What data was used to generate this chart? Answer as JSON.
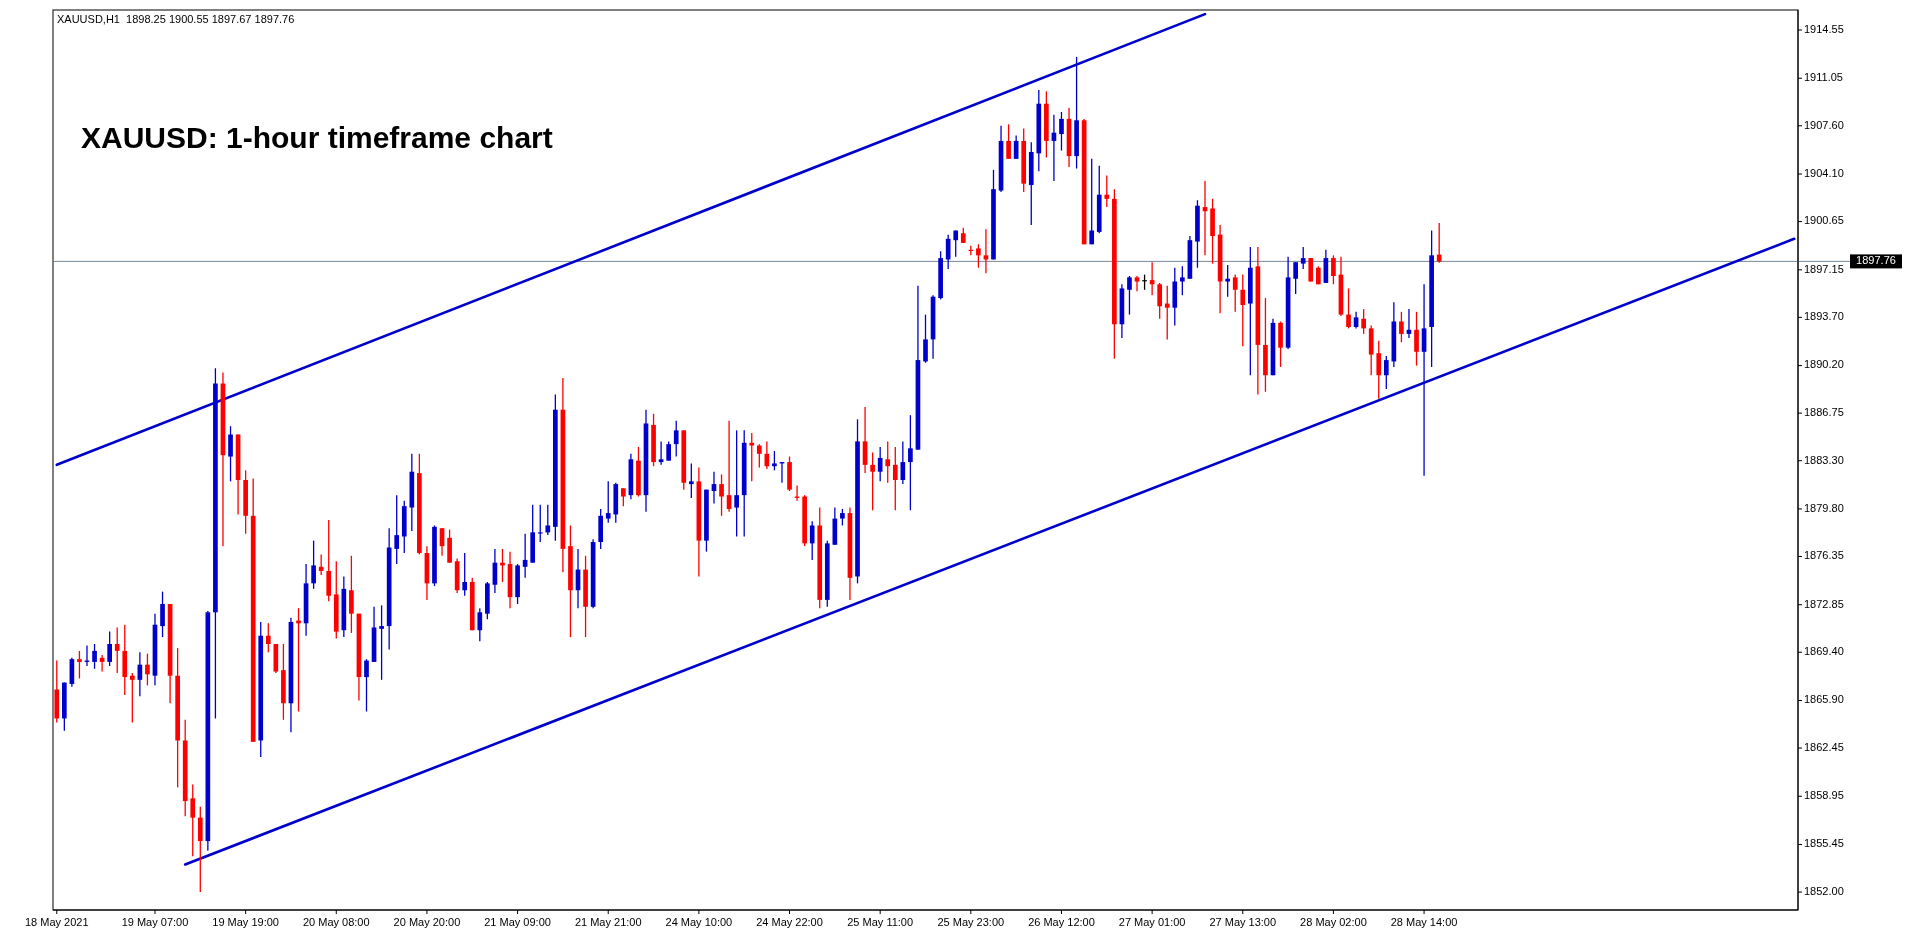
{
  "chart_data": {
    "type": "candlestick",
    "title": "XAUUSD: 1-hour timeframe chart",
    "annotations": [
      "XAUUSD,H1  1898.25 1900.55 1897.67 1897.76"
    ],
    "categories": [
      "18 May 2021",
      null,
      null,
      null,
      null,
      null,
      null,
      null,
      null,
      null,
      null,
      null,
      null,
      "19 May 07:00",
      null,
      null,
      null,
      null,
      null,
      null,
      null,
      null,
      null,
      null,
      null,
      "19 May 19:00",
      null,
      null,
      null,
      null,
      null,
      null,
      null,
      null,
      null,
      null,
      null,
      "20 May 08:00",
      null,
      null,
      null,
      null,
      null,
      null,
      null,
      null,
      null,
      null,
      null,
      "20 May 20:00",
      null,
      null,
      null,
      null,
      null,
      null,
      null,
      null,
      null,
      null,
      null,
      "21 May 09:00",
      null,
      null,
      null,
      null,
      null,
      null,
      null,
      null,
      null,
      null,
      null,
      "21 May 21:00",
      null,
      null,
      null,
      null,
      null,
      null,
      null,
      null,
      null,
      null,
      null,
      "24 May 10:00",
      null,
      null,
      null,
      null,
      null,
      null,
      null,
      null,
      null,
      null,
      null,
      "24 May 22:00",
      null,
      null,
      null,
      null,
      null,
      null,
      null,
      null,
      null,
      null,
      null,
      "25 May 11:00",
      null,
      null,
      null,
      null,
      null,
      null,
      null,
      null,
      null,
      null,
      null,
      "25 May 23:00",
      null,
      null,
      null,
      null,
      null,
      null,
      null,
      null,
      null,
      null,
      null,
      "26 May 12:00",
      null,
      null,
      null,
      null,
      null,
      null,
      null,
      null,
      null,
      null,
      null,
      "27 May 01:00",
      null,
      null,
      null,
      null,
      null,
      null,
      null,
      null,
      null,
      null,
      null,
      "27 May 13:00",
      null,
      null,
      null,
      null,
      null,
      null,
      null,
      null,
      null,
      null,
      null,
      "28 May 02:00",
      null,
      null,
      null,
      null,
      null,
      null,
      null,
      null,
      null,
      null,
      null,
      "28 May 14:00",
      null,
      null,
      null,
      null,
      null,
      null,
      null,
      null,
      null,
      null,
      null,
      null,
      null,
      null,
      null,
      null,
      null,
      null,
      null,
      null,
      null,
      null,
      null,
      null,
      null,
      null,
      null,
      null,
      null,
      null,
      null,
      null,
      null,
      null,
      null,
      null,
      null,
      null,
      null,
      null,
      null,
      null,
      null,
      null,
      null,
      null,
      null,
      null,
      null
    ],
    "ohlc": [
      [
        1866.7,
        1868.8,
        1864.3,
        1864.6
      ],
      [
        1864.6,
        1867.2,
        1863.7,
        1867.2
      ],
      [
        1867.1,
        1869.0,
        1866.9,
        1868.9
      ],
      [
        1868.9,
        1869.5,
        1867.5,
        1868.7
      ],
      [
        1868.7,
        1869.9,
        1868.4,
        1868.8
      ],
      [
        1868.7,
        1870.0,
        1868.2,
        1869.5
      ],
      [
        1869.0,
        1869.2,
        1868.0,
        1868.7
      ],
      [
        1868.7,
        1870.9,
        1868.4,
        1870.0
      ],
      [
        1870.0,
        1871.2,
        1867.9,
        1869.5
      ],
      [
        1869.5,
        1871.4,
        1866.3,
        1867.6
      ],
      [
        1867.7,
        1867.9,
        1864.3,
        1867.4
      ],
      [
        1867.4,
        1869.4,
        1866.2,
        1868.5
      ],
      [
        1868.5,
        1869.3,
        1867.0,
        1867.8
      ],
      [
        1867.7,
        1872.2,
        1867.0,
        1871.4
      ],
      [
        1871.3,
        1873.8,
        1870.5,
        1872.9
      ],
      [
        1872.9,
        1872.9,
        1865.7,
        1867.7
      ],
      [
        1867.7,
        1869.7,
        1859.6,
        1863.0
      ],
      [
        1863.0,
        1864.5,
        1857.5,
        1858.6
      ],
      [
        1858.8,
        1859.8,
        1854.6,
        1857.4
      ],
      [
        1857.4,
        1858.2,
        1852.0,
        1855.7
      ],
      [
        1855.7,
        1872.4,
        1855.0,
        1872.3
      ],
      [
        1872.3,
        1890.0,
        1864.6,
        1888.9
      ],
      [
        1888.9,
        1889.7,
        1877.1,
        1883.7
      ],
      [
        1883.6,
        1885.8,
        1881.8,
        1885.2
      ],
      [
        1885.2,
        1885.2,
        1879.4,
        1881.9
      ],
      [
        1881.9,
        1882.6,
        1878.0,
        1879.3
      ],
      [
        1879.3,
        1882.0,
        1862.9,
        1862.9
      ],
      [
        1863.0,
        1871.6,
        1861.8,
        1870.6
      ],
      [
        1870.6,
        1871.5,
        1869.4,
        1870.0
      ],
      [
        1870.0,
        1870.0,
        1867.9,
        1868.0
      ],
      [
        1868.1,
        1870.0,
        1864.5,
        1865.7
      ],
      [
        1865.7,
        1871.9,
        1863.6,
        1871.6
      ],
      [
        1871.7,
        1872.6,
        1865.1,
        1871.5
      ],
      [
        1871.5,
        1875.8,
        1870.6,
        1874.4
      ],
      [
        1874.4,
        1877.5,
        1874.0,
        1875.7
      ],
      [
        1875.6,
        1876.5,
        1875.0,
        1875.3
      ],
      [
        1875.3,
        1879.0,
        1873.1,
        1873.5
      ],
      [
        1873.6,
        1876.0,
        1870.4,
        1870.9
      ],
      [
        1871.0,
        1874.9,
        1870.5,
        1874.0
      ],
      [
        1873.9,
        1876.4,
        1870.8,
        1872.2
      ],
      [
        1872.2,
        1872.2,
        1865.9,
        1867.6
      ],
      [
        1867.6,
        1868.9,
        1865.1,
        1868.8
      ],
      [
        1868.7,
        1872.7,
        1868.7,
        1871.2
      ],
      [
        1871.1,
        1872.8,
        1867.4,
        1871.3
      ],
      [
        1871.3,
        1878.4,
        1869.6,
        1877.0
      ],
      [
        1876.9,
        1880.8,
        1875.8,
        1877.9
      ],
      [
        1877.8,
        1880.4,
        1876.6,
        1880.0
      ],
      [
        1879.9,
        1883.8,
        1878.2,
        1882.5
      ],
      [
        1882.4,
        1883.8,
        1876.5,
        1876.6
      ],
      [
        1876.6,
        1877.1,
        1873.2,
        1874.4
      ],
      [
        1874.4,
        1878.6,
        1874.2,
        1878.5
      ],
      [
        1878.4,
        1878.4,
        1876.4,
        1877.1
      ],
      [
        1877.7,
        1878.3,
        1875.9,
        1875.9
      ],
      [
        1876.0,
        1876.2,
        1873.7,
        1873.9
      ],
      [
        1873.9,
        1876.6,
        1873.5,
        1874.5
      ],
      [
        1874.5,
        1874.8,
        1871.0,
        1871.0
      ],
      [
        1871.0,
        1872.6,
        1870.2,
        1872.3
      ],
      [
        1872.2,
        1874.5,
        1871.8,
        1874.4
      ],
      [
        1874.3,
        1876.9,
        1873.7,
        1875.9
      ],
      [
        1875.9,
        1876.9,
        1874.5,
        1875.7
      ],
      [
        1875.8,
        1876.7,
        1872.6,
        1873.4
      ],
      [
        1873.4,
        1875.8,
        1872.9,
        1875.7
      ],
      [
        1875.6,
        1878.0,
        1874.8,
        1876.1
      ],
      [
        1875.9,
        1880.1,
        1875.9,
        1878.1
      ],
      [
        1878.1,
        1880.1,
        1877.4,
        1878.1
      ],
      [
        1878.1,
        1880.1,
        1877.9,
        1878.6
      ],
      [
        1878.5,
        1888.1,
        1877.5,
        1887.0
      ],
      [
        1887.0,
        1889.3,
        1875.2,
        1876.9
      ],
      [
        1877.1,
        1878.6,
        1870.5,
        1873.9
      ],
      [
        1873.9,
        1876.9,
        1872.6,
        1875.4
      ],
      [
        1875.4,
        1876.4,
        1870.5,
        1872.7
      ],
      [
        1872.7,
        1877.6,
        1872.6,
        1877.4
      ],
      [
        1877.4,
        1879.8,
        1876.9,
        1879.3
      ],
      [
        1879.1,
        1881.8,
        1878.8,
        1879.5
      ],
      [
        1879.4,
        1881.7,
        1878.8,
        1881.6
      ],
      [
        1881.3,
        1881.3,
        1880.0,
        1880.7
      ],
      [
        1880.8,
        1883.8,
        1880.5,
        1883.4
      ],
      [
        1883.3,
        1884.3,
        1880.7,
        1880.8
      ],
      [
        1880.8,
        1887.0,
        1879.6,
        1886.0
      ],
      [
        1885.9,
        1886.7,
        1882.9,
        1883.2
      ],
      [
        1883.2,
        1884.7,
        1883.0,
        1883.4
      ],
      [
        1883.3,
        1884.7,
        1883.3,
        1884.5
      ],
      [
        1884.5,
        1886.2,
        1883.6,
        1885.5
      ],
      [
        1885.5,
        1885.5,
        1881.2,
        1881.7
      ],
      [
        1881.6,
        1883.1,
        1880.6,
        1881.8
      ],
      [
        1881.8,
        1882.8,
        1874.9,
        1877.5
      ],
      [
        1877.5,
        1881.2,
        1876.7,
        1881.2
      ],
      [
        1881.1,
        1882.5,
        1880.2,
        1881.6
      ],
      [
        1881.6,
        1882.3,
        1879.3,
        1880.7
      ],
      [
        1880.8,
        1886.2,
        1879.6,
        1879.8
      ],
      [
        1879.9,
        1885.5,
        1877.8,
        1880.8
      ],
      [
        1880.8,
        1885.5,
        1877.8,
        1884.6
      ],
      [
        1884.6,
        1885.3,
        1881.8,
        1884.4
      ],
      [
        1884.4,
        1884.5,
        1882.8,
        1883.8
      ],
      [
        1883.8,
        1884.7,
        1882.7,
        1882.9
      ],
      [
        1882.9,
        1884.0,
        1882.6,
        1883.1
      ],
      [
        1883.1,
        1883.2,
        1881.7,
        1883.2
      ],
      [
        1883.2,
        1883.6,
        1881.1,
        1881.2
      ],
      [
        1880.7,
        1881.5,
        1880.4,
        1880.6
      ],
      [
        1880.7,
        1880.8,
        1877.1,
        1877.3
      ],
      [
        1877.3,
        1878.9,
        1876.1,
        1878.6
      ],
      [
        1878.6,
        1879.9,
        1872.6,
        1873.2
      ],
      [
        1873.2,
        1877.5,
        1872.7,
        1877.3
      ],
      [
        1877.2,
        1879.9,
        1877.2,
        1879.1
      ],
      [
        1879.1,
        1879.8,
        1878.6,
        1879.5
      ],
      [
        1879.5,
        1879.9,
        1873.2,
        1874.8
      ],
      [
        1874.9,
        1886.3,
        1874.4,
        1884.7
      ],
      [
        1884.7,
        1887.2,
        1882.4,
        1883.0
      ],
      [
        1883.0,
        1883.9,
        1879.7,
        1882.5
      ],
      [
        1882.5,
        1884.3,
        1881.8,
        1883.5
      ],
      [
        1883.4,
        1884.7,
        1881.7,
        1882.9
      ],
      [
        1883.0,
        1884.3,
        1879.7,
        1881.9
      ],
      [
        1881.9,
        1884.7,
        1881.6,
        1883.2
      ],
      [
        1883.2,
        1886.6,
        1879.7,
        1884.2
      ],
      [
        1884.1,
        1896.0,
        1884.1,
        1890.6
      ],
      [
        1890.5,
        1893.9,
        1890.4,
        1892.1
      ],
      [
        1892.1,
        1895.3,
        1890.7,
        1895.2
      ],
      [
        1895.1,
        1898.5,
        1895.0,
        1898.0
      ],
      [
        1897.9,
        1899.7,
        1897.2,
        1899.4
      ],
      [
        1899.3,
        1900.0,
        1898.1,
        1900.0
      ],
      [
        1899.8,
        1900.2,
        1899.1,
        1899.1
      ],
      [
        1898.6,
        1898.9,
        1898.2,
        1898.6
      ],
      [
        1898.7,
        1899.0,
        1897.3,
        1898.2
      ],
      [
        1898.2,
        1900.1,
        1896.9,
        1897.9
      ],
      [
        1897.9,
        1904.4,
        1897.9,
        1903.0
      ],
      [
        1902.9,
        1907.6,
        1902.8,
        1906.5
      ],
      [
        1906.5,
        1907.7,
        1905.2,
        1905.2
      ],
      [
        1905.2,
        1906.9,
        1905.2,
        1906.5
      ],
      [
        1906.5,
        1907.4,
        1902.8,
        1903.4
      ],
      [
        1903.3,
        1906.4,
        1900.4,
        1905.7
      ],
      [
        1905.6,
        1910.2,
        1904.3,
        1909.2
      ],
      [
        1909.2,
        1910.1,
        1905.3,
        1906.5
      ],
      [
        1906.5,
        1908.4,
        1903.6,
        1907.1
      ],
      [
        1907.0,
        1908.6,
        1905.8,
        1908.1
      ],
      [
        1908.1,
        1908.9,
        1904.6,
        1905.4
      ],
      [
        1905.4,
        1912.6,
        1904.5,
        1908.0
      ],
      [
        1908.0,
        1908.1,
        1899.0,
        1899.0
      ],
      [
        1899.0,
        1905.2,
        1899.0,
        1900.0
      ],
      [
        1899.9,
        1904.7,
        1899.8,
        1902.6
      ],
      [
        1902.6,
        1904.0,
        1901.7,
        1902.3
      ],
      [
        1902.3,
        1903.0,
        1890.7,
        1893.2
      ],
      [
        1893.2,
        1896.1,
        1892.2,
        1895.8
      ],
      [
        1895.7,
        1896.7,
        1893.9,
        1896.6
      ],
      [
        1896.6,
        1896.7,
        1895.6,
        1896.3
      ],
      [
        1896.4,
        1896.8,
        1895.7,
        1896.4
      ],
      [
        1896.4,
        1897.7,
        1895.3,
        1896.1
      ],
      [
        1896.1,
        1896.2,
        1893.6,
        1894.5
      ],
      [
        1894.7,
        1896.0,
        1892.1,
        1894.4
      ],
      [
        1894.4,
        1897.3,
        1893.1,
        1896.3
      ],
      [
        1896.3,
        1897.4,
        1895.3,
        1896.6
      ],
      [
        1896.5,
        1899.6,
        1896.5,
        1899.3
      ],
      [
        1899.2,
        1902.2,
        1897.3,
        1901.8
      ],
      [
        1901.7,
        1903.6,
        1898.2,
        1901.4
      ],
      [
        1901.6,
        1902.3,
        1897.6,
        1899.6
      ],
      [
        1899.7,
        1900.4,
        1894.0,
        1896.3
      ],
      [
        1896.3,
        1897.5,
        1895.2,
        1896.5
      ],
      [
        1896.6,
        1896.8,
        1894.1,
        1895.7
      ],
      [
        1895.7,
        1896.8,
        1891.6,
        1894.6
      ],
      [
        1894.7,
        1898.8,
        1889.5,
        1897.3
      ],
      [
        1897.4,
        1898.8,
        1888.1,
        1891.7
      ],
      [
        1891.7,
        1895.1,
        1888.3,
        1889.5
      ],
      [
        1889.5,
        1893.6,
        1889.5,
        1893.3
      ],
      [
        1893.3,
        1893.4,
        1890.1,
        1891.5
      ],
      [
        1891.5,
        1898.1,
        1891.4,
        1896.6
      ],
      [
        1896.5,
        1897.7,
        1895.4,
        1897.7
      ],
      [
        1897.6,
        1898.8,
        1897.2,
        1898.0
      ],
      [
        1898.0,
        1898.0,
        1896.3,
        1896.3
      ],
      [
        1897.3,
        1897.4,
        1896.1,
        1896.1
      ],
      [
        1896.2,
        1898.6,
        1896.2,
        1898.0
      ],
      [
        1898.0,
        1898.2,
        1896.1,
        1896.7
      ],
      [
        1896.8,
        1898.1,
        1893.8,
        1893.9
      ],
      [
        1893.9,
        1895.8,
        1892.9,
        1893.0
      ],
      [
        1893.0,
        1894.1,
        1892.9,
        1893.7
      ],
      [
        1893.6,
        1894.3,
        1892.5,
        1892.9
      ],
      [
        1892.9,
        1893.1,
        1889.5,
        1891.0
      ],
      [
        1891.1,
        1892.0,
        1887.8,
        1889.5
      ],
      [
        1889.5,
        1890.9,
        1888.5,
        1890.6
      ],
      [
        1890.5,
        1894.8,
        1890.1,
        1893.4
      ],
      [
        1893.4,
        1894.1,
        1891.9,
        1892.5
      ],
      [
        1892.5,
        1894.3,
        1892.2,
        1892.8
      ],
      [
        1892.8,
        1894.1,
        1890.2,
        1891.2
      ],
      [
        1891.2,
        1896.1,
        1882.2,
        1892.9
      ],
      [
        1893.0,
        1900.0,
        1890.1,
        1898.2
      ],
      [
        1898.25,
        1900.55,
        1897.67,
        1897.76
      ],
      null,
      null,
      null,
      null,
      null,
      null,
      null,
      null,
      null,
      null,
      null,
      null,
      null,
      null,
      null,
      null,
      null,
      null,
      null,
      null,
      null,
      null,
      null,
      null,
      null,
      null,
      null,
      null,
      null,
      null,
      null,
      null,
      null,
      null,
      null,
      null,
      null,
      null,
      null,
      null,
      null,
      null,
      null,
      null,
      null,
      null,
      null
    ],
    "colors": [
      "#ff0000",
      "#0000cc",
      "#0000cc",
      "#ff0000",
      "#0000cc",
      "#0000cc",
      "#ff0000",
      "#0000cc",
      "#ff0000",
      "#ff0000",
      "#ff0000",
      "#0000cc",
      "#ff0000",
      "#0000cc",
      "#0000cc",
      "#ff0000",
      "#ff0000",
      "#ff0000",
      "#ff0000",
      "#ff0000",
      "#0000cc",
      "#0000cc",
      "#ff0000",
      "#0000cc",
      "#ff0000",
      "#ff0000",
      "#ff0000",
      "#0000cc",
      "#ff0000",
      "#ff0000",
      "#ff0000",
      "#0000cc",
      "#ff0000",
      "#0000cc",
      "#0000cc",
      "#ff0000",
      "#ff0000",
      "#ff0000",
      "#0000cc",
      "#ff0000",
      "#ff0000",
      "#0000cc",
      "#0000cc",
      "#0000cc",
      "#0000cc",
      "#0000cc",
      "#0000cc",
      "#0000cc",
      "#ff0000",
      "#ff0000",
      "#0000cc",
      "#ff0000",
      "#ff0000",
      "#ff0000",
      "#0000cc",
      "#ff0000",
      "#0000cc",
      "#0000cc",
      "#0000cc",
      "#ff0000",
      "#ff0000",
      "#0000cc",
      "#0000cc",
      "#0000cc",
      "#0000cc",
      "#0000cc",
      "#0000cc",
      "#ff0000",
      "#ff0000",
      "#0000cc",
      "#ff0000",
      "#0000cc",
      "#0000cc",
      "#0000cc",
      "#0000cc",
      "#ff0000",
      "#0000cc",
      "#ff0000",
      "#0000cc",
      "#ff0000",
      "#0000cc",
      "#0000cc",
      "#0000cc",
      "#ff0000",
      "#0000cc",
      "#ff0000",
      "#0000cc",
      "#0000cc",
      "#ff0000",
      "#ff0000",
      "#0000cc",
      "#0000cc",
      "#ff0000",
      "#ff0000",
      "#ff0000",
      "#0000cc",
      "#0000cc",
      "#ff0000",
      "#ff0000",
      "#ff0000",
      "#0000cc",
      "#ff0000",
      "#0000cc",
      "#0000cc",
      "#0000cc",
      "#ff0000",
      "#0000cc",
      "#ff0000",
      "#ff0000",
      "#0000cc",
      "#ff0000",
      "#ff0000",
      "#0000cc",
      "#0000cc",
      "#0000cc",
      "#0000cc",
      "#0000cc",
      "#0000cc",
      "#0000cc",
      "#0000cc",
      "#ff0000",
      "#ff0000",
      "#ff0000",
      "#ff0000",
      "#0000cc",
      "#0000cc",
      "#ff0000",
      "#0000cc",
      "#ff0000",
      "#0000cc",
      "#0000cc",
      "#ff0000",
      "#0000cc",
      "#0000cc",
      "#ff0000",
      "#0000cc",
      "#ff0000",
      "#0000cc",
      "#0000cc",
      "#ff0000",
      "#ff0000",
      "#0000cc",
      "#0000cc",
      "#ff0000",
      "#000000",
      "#ff0000",
      "#ff0000",
      "#ff0000",
      "#0000cc",
      "#0000cc",
      "#0000cc",
      "#0000cc",
      "#ff0000",
      "#ff0000",
      "#ff0000",
      "#0000cc",
      "#ff0000",
      "#ff0000",
      "#0000cc",
      "#ff0000",
      "#ff0000",
      "#0000cc",
      "#ff0000",
      "#0000cc",
      "#0000cc",
      "#0000cc",
      "#ff0000",
      "#ff0000",
      "#0000cc",
      "#ff0000",
      "#ff0000",
      "#ff0000",
      "#0000cc",
      "#ff0000",
      "#ff0000",
      "#ff0000",
      "#0000cc",
      "#0000cc",
      "#ff0000",
      "#0000cc",
      "#ff0000",
      "#0000cc",
      "#0000cc",
      "#ff0000",
      null,
      null,
      null,
      null,
      null,
      null,
      null,
      null,
      null,
      null,
      null,
      null,
      null,
      null,
      null,
      null,
      null,
      null,
      null,
      null,
      null,
      null,
      null,
      null,
      null,
      null,
      null,
      null,
      null,
      null,
      null,
      null,
      null,
      null,
      null,
      null,
      null,
      null,
      null,
      null,
      null,
      null,
      null,
      null,
      null,
      null,
      null
    ],
    "series": [
      {
        "type": "line",
        "color": "#0000cc",
        "values": [
          1883.0,
          null,
          null,
          null,
          null,
          null,
          null,
          null,
          null,
          null,
          null,
          null,
          null,
          null,
          null,
          null,
          null,
          null,
          null,
          null,
          null,
          null,
          null,
          null,
          null,
          null,
          null,
          null,
          null,
          null,
          null,
          null,
          null,
          null,
          null,
          null,
          null,
          null,
          null,
          null,
          null,
          null,
          null,
          null,
          null,
          null,
          null,
          null,
          null,
          null,
          null,
          null,
          null,
          null,
          null,
          null,
          null,
          null,
          null,
          null,
          null,
          null,
          null,
          null,
          null,
          null,
          null,
          null,
          null,
          null,
          null,
          null,
          null,
          null,
          null,
          null,
          null,
          null,
          null,
          null,
          null,
          null,
          null,
          null,
          null,
          null,
          null,
          null,
          null,
          null,
          null,
          null,
          null,
          null,
          null,
          null,
          null,
          null,
          null,
          null,
          null,
          null,
          null,
          null,
          null,
          null,
          null,
          null,
          null,
          null,
          null,
          null,
          null,
          null,
          null,
          null,
          null,
          null,
          null,
          null,
          null,
          null,
          null,
          null,
          null,
          null,
          null,
          null,
          null,
          null,
          null,
          null,
          null,
          null,
          null,
          null,
          null,
          null,
          null,
          null,
          null,
          null,
          null,
          null,
          null,
          null,
          null,
          null,
          null,
          null,
          null,
          null,
          1915.7,
          null,
          null,
          null,
          null,
          null,
          null,
          null,
          null,
          null,
          null,
          null,
          null,
          null,
          null,
          null,
          null,
          null,
          null,
          null,
          null,
          null,
          null,
          null,
          null,
          null,
          null,
          null,
          null,
          null,
          null,
          null,
          null,
          null,
          null,
          null,
          null,
          null,
          null,
          null,
          null,
          null,
          null,
          null,
          null,
          null,
          null,
          null,
          null,
          null,
          null,
          null,
          null,
          null,
          null,
          null,
          null,
          null,
          null,
          null,
          null,
          null,
          null,
          null,
          null,
          null,
          null,
          null,
          null,
          null,
          null,
          null,
          null,
          null,
          null,
          null,
          null,
          null,
          null
        ]
      },
      {
        "type": "line",
        "color": "#0000cc",
        "values": [
          null,
          null,
          null,
          null,
          null,
          null,
          null,
          null,
          null,
          null,
          null,
          null,
          null,
          null,
          null,
          null,
          null,
          1854.0,
          null,
          null,
          null,
          null,
          null,
          null,
          null,
          null,
          null,
          null,
          null,
          null,
          null,
          null,
          null,
          null,
          null,
          null,
          null,
          null,
          null,
          null,
          null,
          null,
          null,
          null,
          null,
          null,
          null,
          null,
          null,
          null,
          null,
          null,
          null,
          null,
          null,
          null,
          null,
          null,
          null,
          null,
          null,
          null,
          null,
          null,
          null,
          null,
          null,
          null,
          null,
          null,
          null,
          null,
          null,
          null,
          null,
          null,
          null,
          null,
          null,
          null,
          null,
          null,
          null,
          null,
          null,
          null,
          null,
          null,
          null,
          null,
          null,
          null,
          null,
          null,
          null,
          null,
          null,
          null,
          null,
          null,
          null,
          null,
          null,
          null,
          null,
          null,
          null,
          null,
          null,
          null,
          null,
          null,
          null,
          null,
          null,
          null,
          null,
          null,
          null,
          null,
          null,
          null,
          null,
          null,
          null,
          null,
          null,
          null,
          null,
          null,
          null,
          null,
          null,
          null,
          null,
          null,
          null,
          null,
          null,
          null,
          null,
          null,
          null,
          null,
          null,
          null,
          null,
          null,
          null,
          null,
          null,
          null,
          null,
          null,
          null,
          null,
          null,
          null,
          null,
          null,
          null,
          null,
          null,
          null,
          null,
          null,
          null,
          null,
          null,
          null,
          null,
          null,
          null,
          null,
          null,
          null,
          null,
          null,
          null,
          null,
          null,
          null,
          null,
          null,
          null,
          null,
          null,
          null,
          null,
          null,
          null,
          null,
          null,
          null,
          null,
          null,
          null,
          null,
          null,
          null,
          null,
          null,
          null,
          null,
          null,
          null,
          null,
          null,
          null,
          null,
          null,
          null,
          null,
          null,
          null,
          null,
          null,
          null,
          null,
          null,
          null,
          null,
          null,
          null,
          null,
          null,
          null,
          null,
          null,
          null,
          1899.4
        ]
      }
    ],
    "ref_lines": [
      {
        "axis": "y",
        "value": 1897.76,
        "label": "1897.76",
        "color": "#778899"
      }
    ],
    "ylim": [
      1850.7,
      1916.0
    ],
    "yticks": [
      {
        "value": 1852,
        "label": "1852.00"
      },
      1855.45,
      1858.95,
      1862.45,
      {
        "value": 1865.9,
        "label": "1865.90"
      },
      {
        "value": 1869.4,
        "label": "1869.40"
      },
      1872.85,
      1876.35,
      {
        "value": 1879.8,
        "label": "1879.80"
      },
      {
        "value": 1883.3,
        "label": "1883.30"
      },
      1886.75,
      {
        "value": 1890.2,
        "label": "1890.20"
      },
      {
        "value": 1893.7,
        "label": "1893.70"
      },
      1897.15,
      1900.65,
      {
        "value": 1904.1,
        "label": "1904.10"
      },
      {
        "value": 1907.6,
        "label": "1907.60"
      },
      1911.05,
      1914.55
    ]
  }
}
